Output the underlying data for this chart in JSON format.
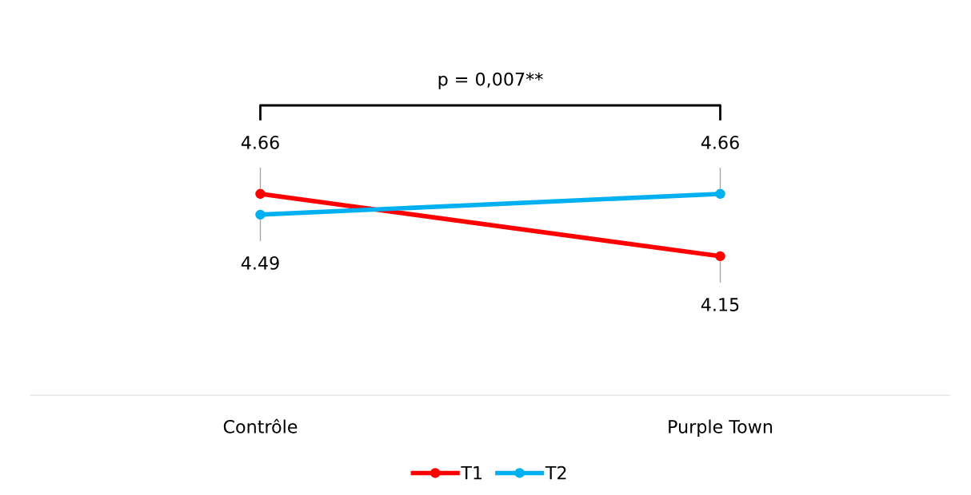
{
  "chart_data": {
    "type": "line",
    "categories": [
      "Contrôle",
      "Purple Town"
    ],
    "series": [
      {
        "name": "T1",
        "color": "#ff0000",
        "values": [
          4.66,
          4.15
        ]
      },
      {
        "name": "T2",
        "color": "#00b0f0",
        "values": [
          4.49,
          4.66
        ]
      }
    ],
    "data_labels": true,
    "marker": "circle",
    "line_style": "solid",
    "grid": false,
    "legend": "bottom",
    "tick_labels": "x",
    "annotations": [
      "p = 0,007**"
    ]
  }
}
